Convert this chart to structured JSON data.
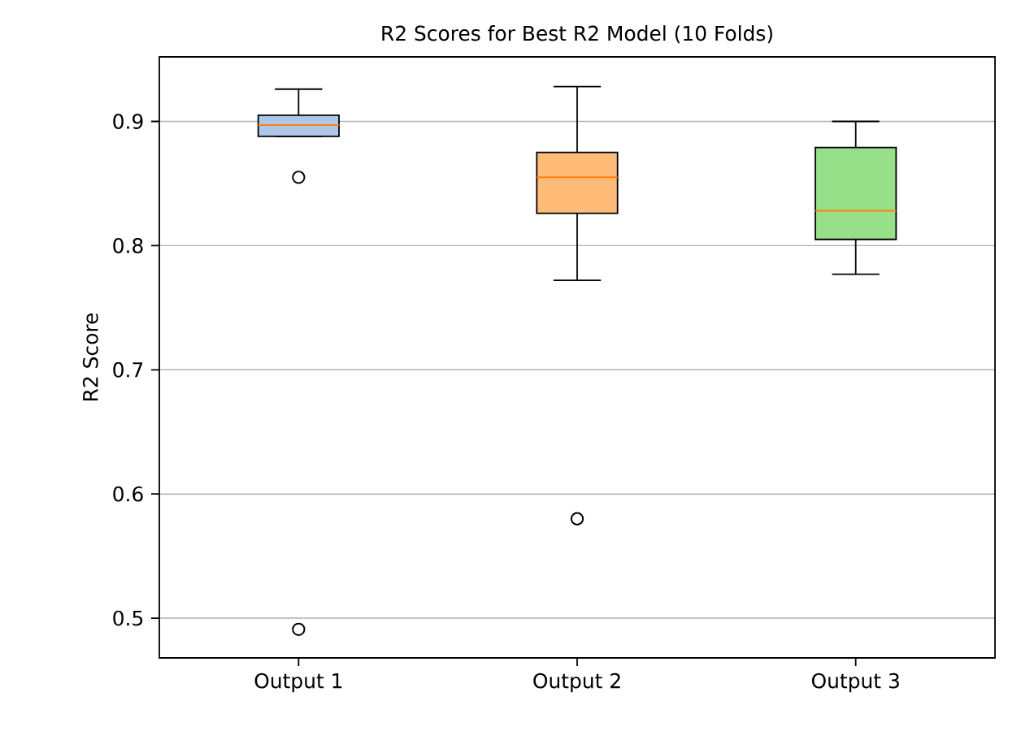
{
  "chart_data": {
    "type": "box",
    "title": "R2 Scores for Best R2 Model (10 Folds)",
    "ylabel": "R2 Score",
    "categories": [
      "Output 1",
      "Output 2",
      "Output 3"
    ],
    "boxes": [
      {
        "low": 0.888,
        "q1": 0.888,
        "median": 0.897,
        "q3": 0.905,
        "high": 0.926,
        "outliers": [
          0.855,
          0.491
        ]
      },
      {
        "low": 0.772,
        "q1": 0.826,
        "median": 0.855,
        "q3": 0.875,
        "high": 0.928,
        "outliers": [
          0.58
        ]
      },
      {
        "low": 0.777,
        "q1": 0.805,
        "median": 0.828,
        "q3": 0.879,
        "high": 0.9
      }
    ],
    "colors": [
      "#aec7e8",
      "#ffbb78",
      "#98df8a"
    ],
    "ylim": [
      0.468,
      0.952
    ],
    "yticks": [
      0.5,
      0.6,
      0.7,
      0.8,
      0.9
    ],
    "grid": "y"
  }
}
